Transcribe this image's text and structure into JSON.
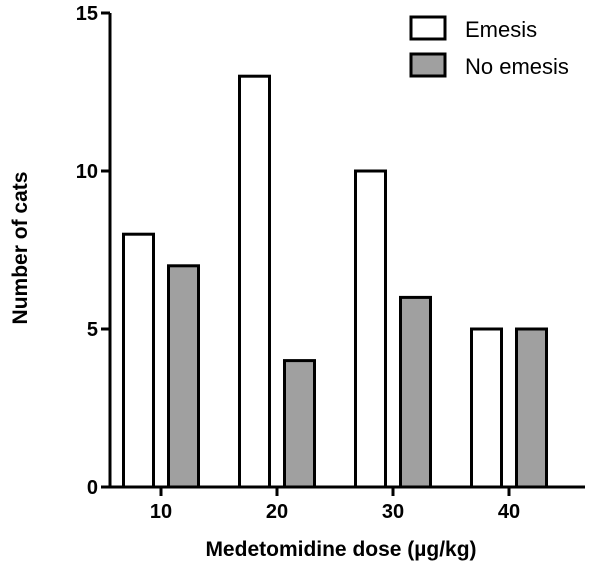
{
  "chart_data": {
    "type": "bar",
    "title": "",
    "xlabel": "Medetomidine dose (µg/kg)",
    "ylabel": "Number of cats",
    "categories": [
      "10",
      "20",
      "30",
      "40"
    ],
    "ylim": [
      0,
      15
    ],
    "yticks": [
      "0",
      "5",
      "10",
      "15"
    ],
    "grid": false,
    "legend_position": "top-right",
    "series": [
      {
        "name": "Emesis",
        "values": [
          8,
          13,
          10,
          5
        ],
        "color": "#ffffff"
      },
      {
        "name": "No emesis",
        "values": [
          7,
          4,
          6,
          5
        ],
        "color": "#a0a0a0"
      }
    ],
    "edge_color": "#000000"
  }
}
